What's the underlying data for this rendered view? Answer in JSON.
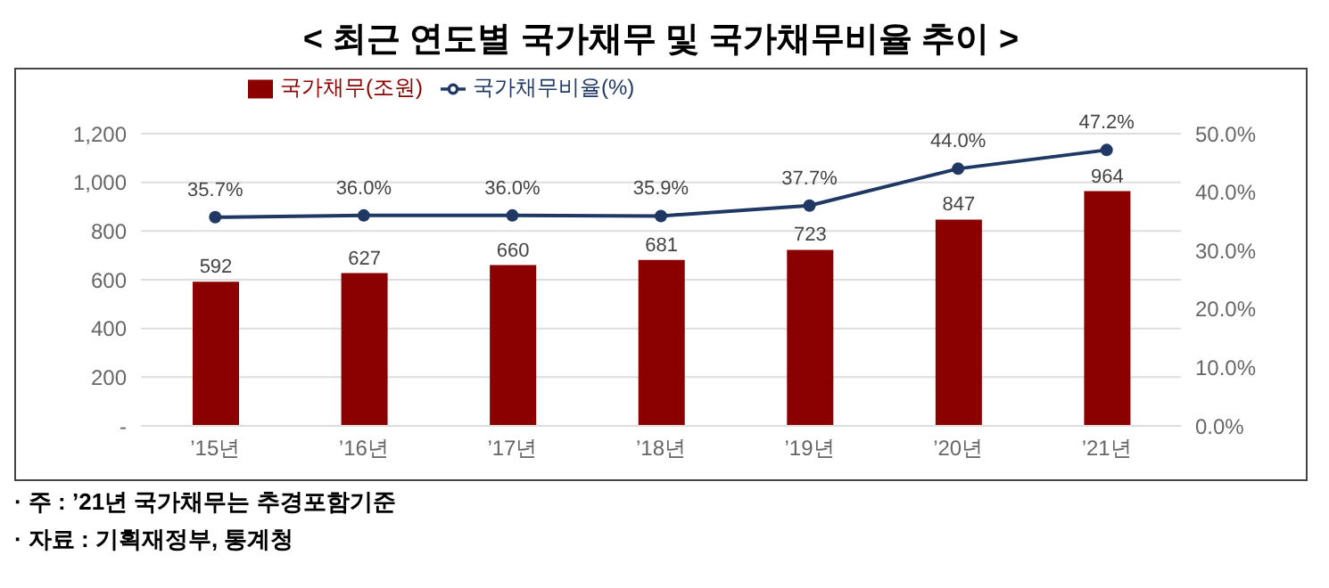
{
  "chart_data": {
    "type": "bar",
    "title": "< 최근 연도별 국가채무 및 국가채무비율 추이 >",
    "categories": [
      "’15년",
      "’16년",
      "’17년",
      "’18년",
      "’19년",
      "’20년",
      "’21년"
    ],
    "series": [
      {
        "name": "국가채무(조원)",
        "color": "#8b0000",
        "values": [
          592,
          627,
          660,
          681,
          723,
          847,
          964
        ],
        "value_labels": [
          "592",
          "627",
          "660",
          "681",
          "723",
          "847",
          "964"
        ]
      },
      {
        "name": "국가채무비율(%)",
        "type": "line",
        "axis": "y2",
        "color": "#1f3864",
        "values": [
          35.7,
          36.0,
          36.0,
          35.9,
          37.7,
          44.0,
          47.2
        ],
        "value_labels": [
          "35.7%",
          "36.0%",
          "36.0%",
          "35.9%",
          "37.7%",
          "44.0%",
          "47.2%"
        ]
      }
    ],
    "ylim": [
      0,
      1200
    ],
    "yticks": [
      {
        "value": 0,
        "label": "-"
      },
      200,
      400,
      600,
      800,
      {
        "value": 1000,
        "label": "1,000"
      },
      {
        "value": 1200,
        "label": "1,200"
      }
    ],
    "y2lim": [
      0,
      50
    ],
    "y2ticks": [
      {
        "value": 0,
        "label": "0.0%"
      },
      {
        "value": 10,
        "label": "10.0%"
      },
      {
        "value": 20,
        "label": "20.0%"
      },
      {
        "value": 30,
        "label": "30.0%"
      },
      {
        "value": 40,
        "label": "40.0%"
      },
      {
        "value": 50,
        "label": "50.0%"
      }
    ],
    "grid": "y",
    "legend": "top left",
    "marker": "circle",
    "line_style": "solid",
    "annotations": [
      "· 주 : ’21년 국가채무는 추경포함기준",
      "· 자료 : 기획재정부, 통계청"
    ]
  }
}
